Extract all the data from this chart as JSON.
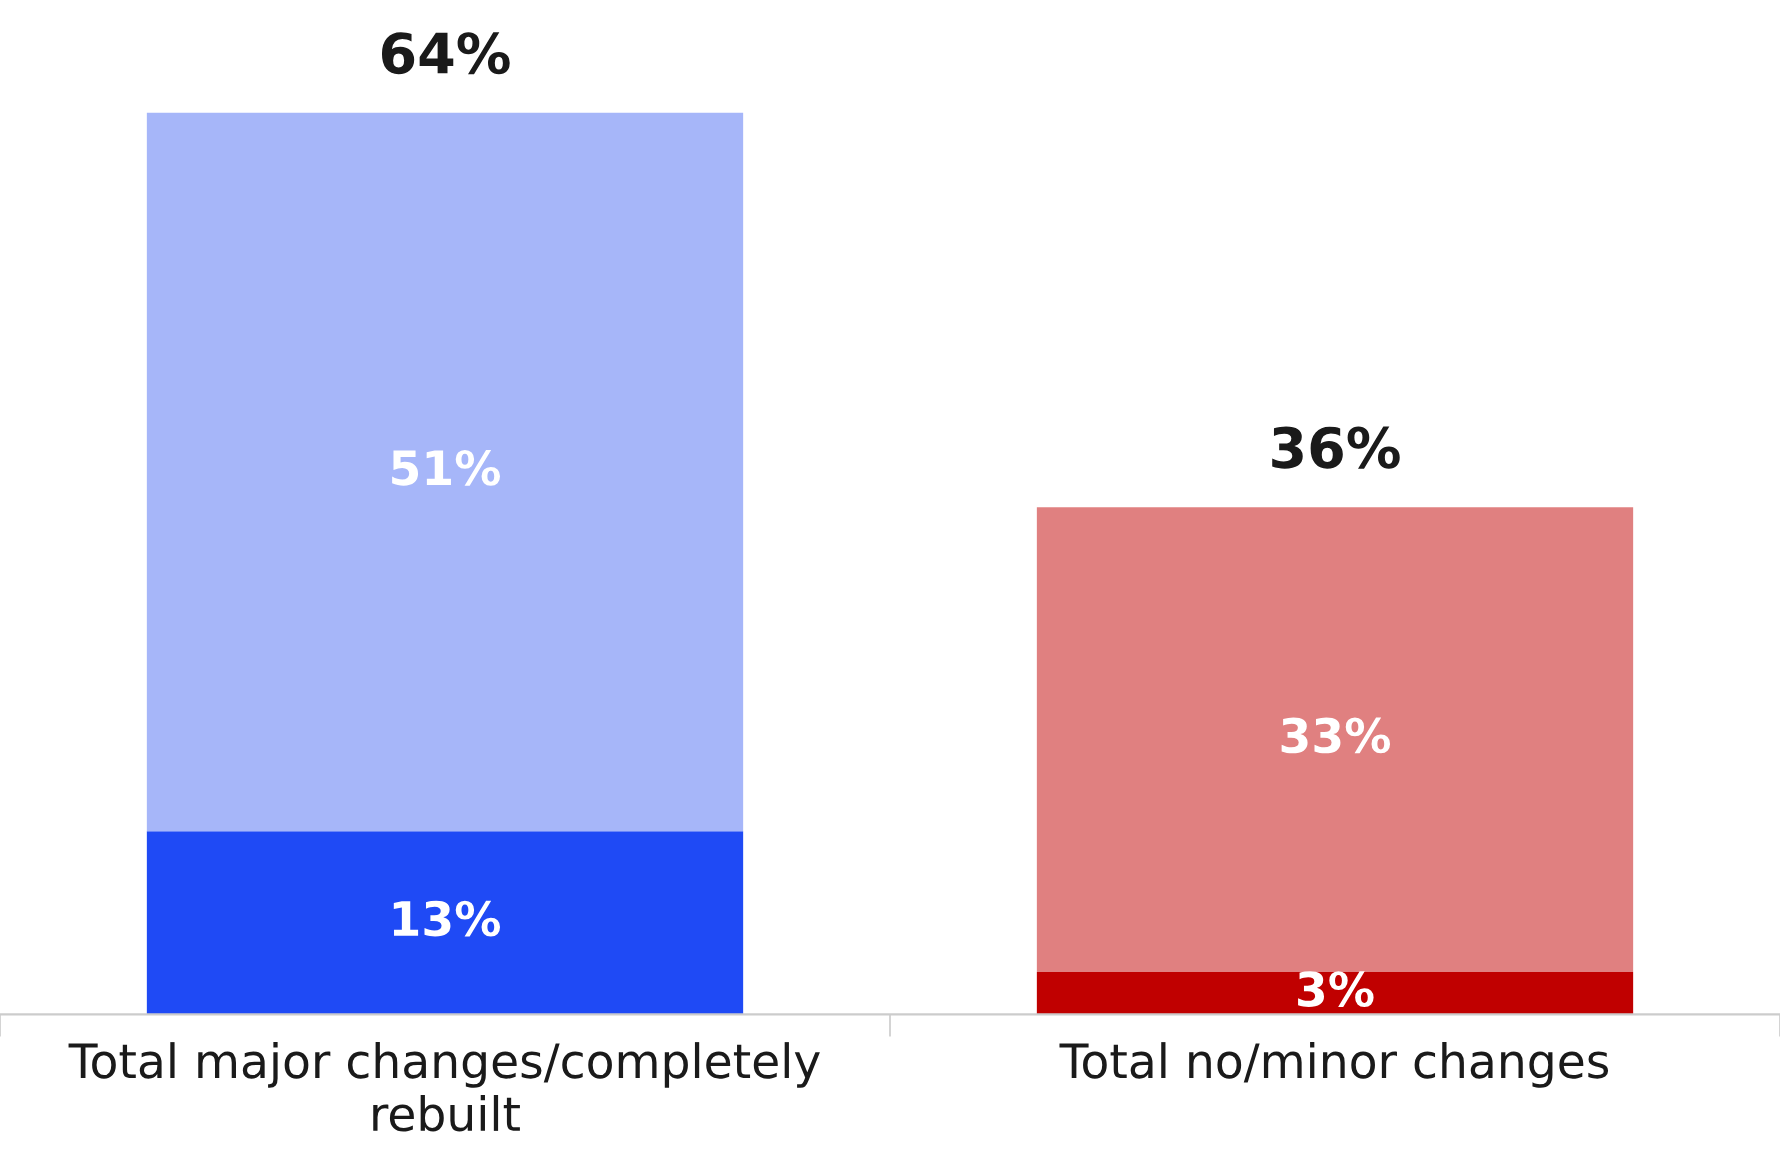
{
  "chart_data": {
    "type": "bar",
    "stacked": true,
    "categories": [
      "Total major changes/completely rebuilt",
      "Total no/minor changes"
    ],
    "series": [
      {
        "colors": [
          "#1f4af5",
          "#c00000"
        ],
        "values": [
          13,
          3
        ],
        "value_labels": [
          "13%",
          "3%"
        ]
      },
      {
        "colors": [
          "#a6b6f9",
          "#e08080"
        ],
        "values": [
          51,
          33
        ],
        "value_labels": [
          "51%",
          "33%"
        ]
      }
    ],
    "totals": [
      "64%",
      "36%"
    ],
    "grid": false,
    "legend": false
  }
}
